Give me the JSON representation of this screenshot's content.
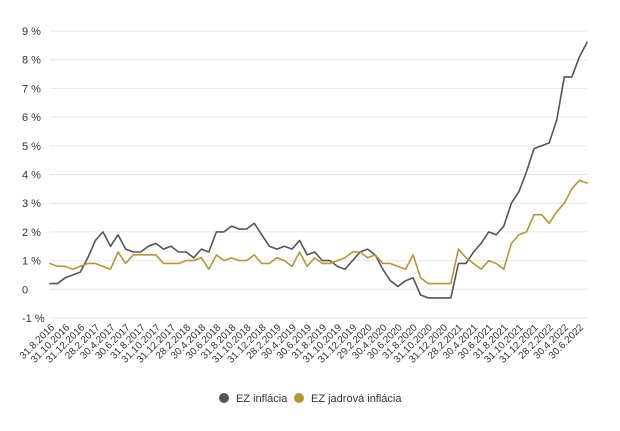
{
  "chart_data": {
    "type": "line",
    "title": "",
    "xlabel": "",
    "ylabel": "",
    "ylim": [
      -1,
      9
    ],
    "y_ticks": [
      -1,
      0,
      1,
      2,
      3,
      4,
      5,
      6,
      7,
      8,
      9
    ],
    "y_tick_labels": [
      "-1 %",
      "0",
      "1 %",
      "2 %",
      "3 %",
      "4 %",
      "5 %",
      "6 %",
      "7 %",
      "8 %",
      "9 %"
    ],
    "grid": "horizontal",
    "legend_position": "bottom-center",
    "x_tick_labels": [
      "31.8.2016",
      "31.10.2016",
      "31.12.2016",
      "28.2.2017",
      "30.4.2017",
      "30.6.2017",
      "31.8.2017",
      "31.10.2017",
      "31.12.2017",
      "28.2.2018",
      "30.4.2018",
      "30.6.2018",
      "31.8.2018",
      "31.10.2018",
      "31.12.2018",
      "28.2.2019",
      "30.4.2019",
      "30.6.2019",
      "31.8.2019",
      "31.10.2019",
      "31.12.2019",
      "29.2.2020",
      "30.4.2020",
      "30.6.2020",
      "31.8.2020",
      "31.10.2020",
      "31.12.2020",
      "28.2.2021",
      "30.4.2021",
      "30.6.2021",
      "31.8.2021",
      "31.10.2021",
      "31.12.2021",
      "28.2.2022",
      "30.4.2022",
      "30.6.2022"
    ],
    "series": [
      {
        "name": "EZ inflácia",
        "color": "#555555",
        "values": [
          0.2,
          0.2,
          0.4,
          0.5,
          0.6,
          1.1,
          1.7,
          2.0,
          1.5,
          1.9,
          1.4,
          1.3,
          1.3,
          1.5,
          1.6,
          1.4,
          1.5,
          1.3,
          1.3,
          1.1,
          1.4,
          1.3,
          2.0,
          2.0,
          2.2,
          2.1,
          2.1,
          2.3,
          1.9,
          1.5,
          1.4,
          1.5,
          1.4,
          1.7,
          1.2,
          1.3,
          1.0,
          1.0,
          0.8,
          0.7,
          1.0,
          1.3,
          1.4,
          1.2,
          0.7,
          0.3,
          0.1,
          0.3,
          0.4,
          -0.2,
          -0.3,
          -0.3,
          -0.3,
          -0.3,
          0.9,
          0.9,
          1.3,
          1.6,
          2.0,
          1.9,
          2.2,
          3.0,
          3.4,
          4.1,
          4.9,
          5.0,
          5.1,
          5.9,
          7.4,
          7.4,
          8.1,
          8.6
        ]
      },
      {
        "name": "EZ jadrová inflácia",
        "color": "#b89434",
        "values": [
          0.9,
          0.8,
          0.8,
          0.7,
          0.8,
          0.9,
          0.9,
          0.8,
          0.7,
          1.3,
          0.9,
          1.2,
          1.2,
          1.2,
          1.2,
          0.9,
          0.9,
          0.9,
          1.0,
          1.0,
          1.1,
          0.7,
          1.2,
          1.0,
          1.1,
          1.0,
          1.0,
          1.2,
          0.9,
          0.9,
          1.1,
          1.0,
          0.8,
          1.3,
          0.8,
          1.1,
          0.9,
          0.9,
          1.0,
          1.1,
          1.3,
          1.3,
          1.1,
          1.2,
          0.9,
          0.9,
          0.8,
          0.7,
          1.2,
          0.4,
          0.2,
          0.2,
          0.2,
          0.2,
          1.4,
          1.1,
          0.9,
          0.7,
          1.0,
          0.9,
          0.7,
          1.6,
          1.9,
          2.0,
          2.6,
          2.6,
          2.3,
          2.7,
          3.0,
          3.5,
          3.8,
          3.7
        ]
      }
    ]
  }
}
